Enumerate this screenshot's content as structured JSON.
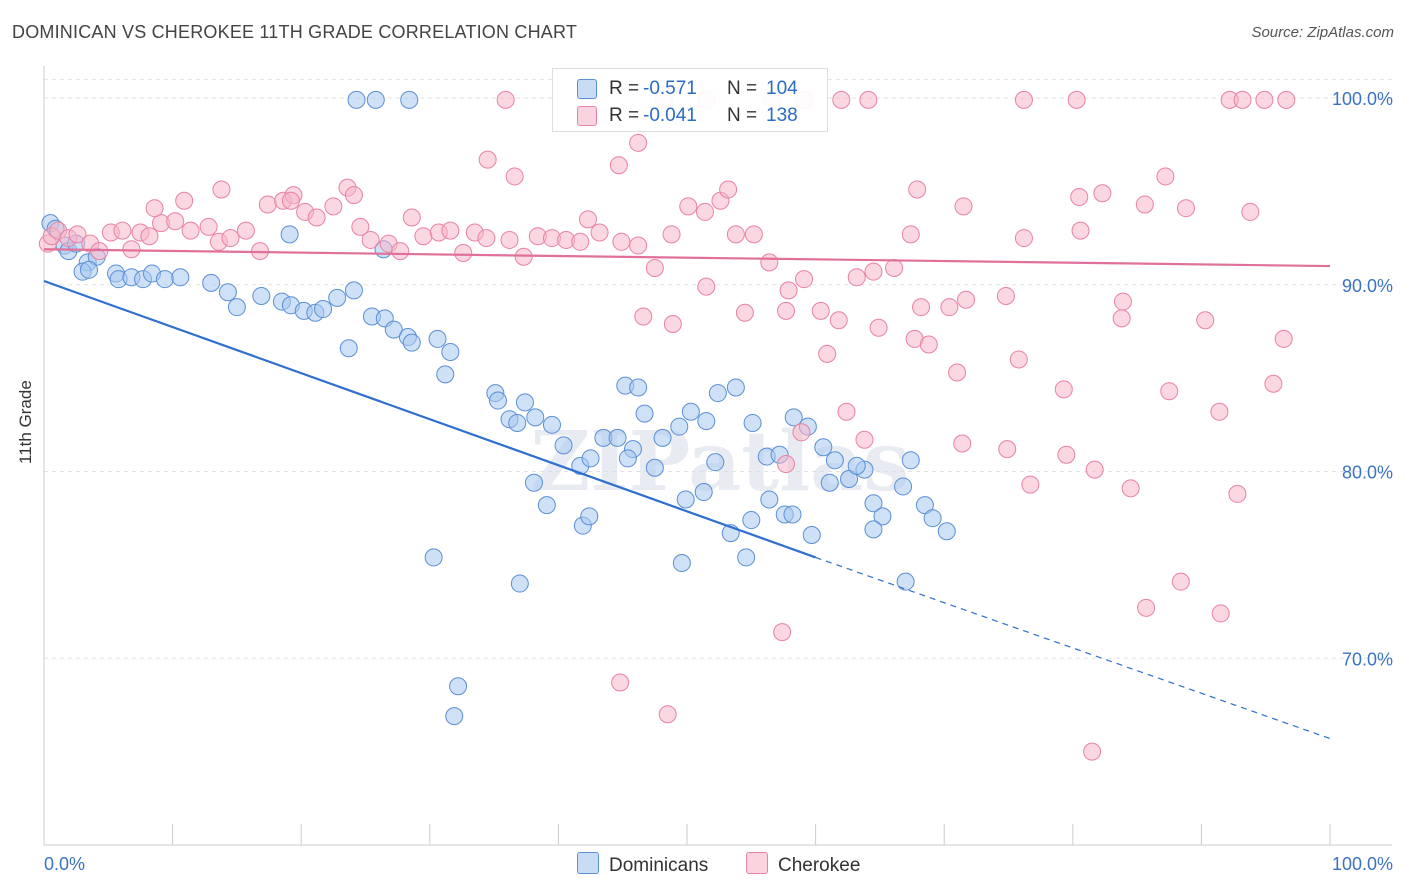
{
  "header": {
    "title": "DOMINICAN VS CHEROKEE 11TH GRADE CORRELATION CHART",
    "source": "Source: ZipAtlas.com"
  },
  "legend": {
    "rows": [
      {
        "r_label": "R =",
        "r_value": "-0.571",
        "n_label": "N =",
        "n_value": "104",
        "color": "#a8c8f0"
      },
      {
        "r_label": "R =",
        "r_value": "-0.041",
        "n_label": "N =",
        "n_value": "138",
        "color": "#f7b6c9"
      }
    ]
  },
  "bottom_legend": {
    "dominicans": "Dominicans",
    "cherokee": "Cherokee"
  },
  "chart_data": {
    "type": "scatter",
    "title": "DOMINICAN VS CHEROKEE 11TH GRADE CORRELATION CHART",
    "xlabel": "",
    "ylabel": "11th Grade",
    "xlim": [
      0,
      100
    ],
    "ylim": [
      60,
      101.5
    ],
    "x_tick_labels": [
      "0.0%",
      "100.0%"
    ],
    "y_tick_labels": [
      "100.0%",
      "90.0%",
      "80.0%",
      "70.0%"
    ],
    "y_ticks": [
      100,
      90,
      80,
      70
    ],
    "grid": true,
    "watermark": "ZIPatlas",
    "series": [
      {
        "name": "Dominicans",
        "color": "#a8c8f0",
        "stroke": "#5b8fd6",
        "R": -0.571,
        "N": 104,
        "trend": {
          "x0": 0,
          "y0": 90.2,
          "x1": 60,
          "y1": 75.4,
          "dashed_to_x": 100,
          "dashed_to_y": 65.7,
          "color": "#2e6fd0"
        },
        "points": [
          [
            0.5,
            93.3
          ],
          [
            0.9,
            93
          ],
          [
            1.6,
            92.1
          ],
          [
            1.9,
            91.8
          ],
          [
            2.5,
            92.2
          ],
          [
            3.4,
            91.2
          ],
          [
            4.1,
            91.5
          ],
          [
            3,
            90.7
          ],
          [
            3.5,
            90.8
          ],
          [
            5.6,
            90.6
          ],
          [
            5.8,
            90.3
          ],
          [
            6.8,
            90.4
          ],
          [
            7.7,
            90.3
          ],
          [
            8.4,
            90.6
          ],
          [
            9.4,
            90.3
          ],
          [
            10.6,
            90.4
          ],
          [
            13,
            90.1
          ],
          [
            14.3,
            89.6
          ],
          [
            15,
            88.8
          ],
          [
            16.9,
            89.4
          ],
          [
            18.5,
            89.1
          ],
          [
            19.2,
            88.9
          ],
          [
            20.2,
            88.6
          ],
          [
            21.1,
            88.5
          ],
          [
            21.7,
            88.7
          ],
          [
            22.8,
            89.3
          ],
          [
            24.1,
            89.7
          ],
          [
            25.5,
            88.3
          ],
          [
            26.5,
            88.2
          ],
          [
            27.2,
            87.6
          ],
          [
            28.3,
            87.2
          ],
          [
            28.6,
            86.9
          ],
          [
            30.6,
            87.1
          ],
          [
            31.6,
            86.4
          ],
          [
            35.1,
            84.2
          ],
          [
            35.3,
            83.8
          ],
          [
            36.2,
            82.8
          ],
          [
            36.8,
            82.6
          ],
          [
            37.4,
            83.7
          ],
          [
            38.2,
            82.9
          ],
          [
            39.5,
            82.5
          ],
          [
            40.4,
            81.4
          ],
          [
            41.7,
            80.3
          ],
          [
            42.5,
            80.7
          ],
          [
            43.5,
            81.8
          ],
          [
            44.6,
            81.8
          ],
          [
            45.8,
            81.2
          ],
          [
            46.7,
            83.1
          ],
          [
            48.1,
            81.8
          ],
          [
            49.4,
            82.4
          ],
          [
            50.3,
            83.2
          ],
          [
            51.5,
            82.7
          ],
          [
            52.4,
            84.2
          ],
          [
            53.8,
            84.5
          ],
          [
            55.1,
            82.6
          ],
          [
            56.2,
            80.8
          ],
          [
            57.2,
            80.9
          ],
          [
            58.3,
            82.9
          ],
          [
            59.4,
            82.4
          ],
          [
            60.6,
            81.3
          ],
          [
            61.5,
            80.6
          ],
          [
            62.6,
            79.6
          ],
          [
            63.8,
            80.1
          ],
          [
            64.5,
            78.3
          ],
          [
            65.2,
            77.6
          ],
          [
            66.8,
            79.2
          ],
          [
            67.4,
            80.6
          ],
          [
            68.5,
            78.2
          ],
          [
            69.1,
            77.5
          ],
          [
            70.2,
            76.8
          ],
          [
            24.3,
            99.9
          ],
          [
            25.8,
            99.9
          ],
          [
            28.4,
            99.9
          ],
          [
            19.1,
            92.7
          ],
          [
            26.4,
            91.9
          ],
          [
            23.7,
            86.6
          ],
          [
            31.2,
            85.2
          ],
          [
            37,
            74
          ],
          [
            30.3,
            75.4
          ],
          [
            45.2,
            84.6
          ],
          [
            46.2,
            84.5
          ],
          [
            38.1,
            79.4
          ],
          [
            39.1,
            78.2
          ],
          [
            41.9,
            77.1
          ],
          [
            42.4,
            77.6
          ],
          [
            45.4,
            80.7
          ],
          [
            47.5,
            80.2
          ],
          [
            49.9,
            78.5
          ],
          [
            51.3,
            78.9
          ],
          [
            52.2,
            80.5
          ],
          [
            53.4,
            76.7
          ],
          [
            55,
            77.4
          ],
          [
            56.4,
            78.5
          ],
          [
            57.6,
            77.7
          ],
          [
            58.2,
            77.7
          ],
          [
            59.7,
            76.6
          ],
          [
            61.1,
            79.4
          ],
          [
            63.2,
            80.3
          ],
          [
            64.5,
            76.9
          ],
          [
            67,
            74.1
          ],
          [
            32.2,
            68.5
          ],
          [
            31.9,
            66.9
          ],
          [
            49.6,
            75.1
          ],
          [
            54.6,
            75.4
          ]
        ]
      },
      {
        "name": "Cherokee",
        "color": "#f7b6c9",
        "stroke": "#e882a4",
        "R": -0.041,
        "N": 138,
        "trend": {
          "x0": 0,
          "y0": 91.9,
          "x1": 100,
          "y1": 91.0,
          "color": "#e0709a"
        },
        "points": [
          [
            0.3,
            92.2
          ],
          [
            0.6,
            92.6
          ],
          [
            1.1,
            92.9
          ],
          [
            1.9,
            92.5
          ],
          [
            2.6,
            92.7
          ],
          [
            3.6,
            92.2
          ],
          [
            4.3,
            91.8
          ],
          [
            5.2,
            92.8
          ],
          [
            6.1,
            92.9
          ],
          [
            6.8,
            91.9
          ],
          [
            7.5,
            92.8
          ],
          [
            8.2,
            92.6
          ],
          [
            9.1,
            93.3
          ],
          [
            10.2,
            93.4
          ],
          [
            11.4,
            92.9
          ],
          [
            12.8,
            93.1
          ],
          [
            13.6,
            92.3
          ],
          [
            14.5,
            92.5
          ],
          [
            15.7,
            92.9
          ],
          [
            16.8,
            91.8
          ],
          [
            17.4,
            94.3
          ],
          [
            18.6,
            94.5
          ],
          [
            19.4,
            94.8
          ],
          [
            20.3,
            93.9
          ],
          [
            21.2,
            93.6
          ],
          [
            22.5,
            94.2
          ],
          [
            23.6,
            95.2
          ],
          [
            24.6,
            93.1
          ],
          [
            25.4,
            92.4
          ],
          [
            26.8,
            92.2
          ],
          [
            27.7,
            91.8
          ],
          [
            28.6,
            93.6
          ],
          [
            29.5,
            92.6
          ],
          [
            30.7,
            92.8
          ],
          [
            31.6,
            92.9
          ],
          [
            32.6,
            91.7
          ],
          [
            33.5,
            92.8
          ],
          [
            34.4,
            92.5
          ],
          [
            36.2,
            92.4
          ],
          [
            37.3,
            91.5
          ],
          [
            38.4,
            92.6
          ],
          [
            39.5,
            92.5
          ],
          [
            40.6,
            92.4
          ],
          [
            41.7,
            92.3
          ],
          [
            42.3,
            93.5
          ],
          [
            43.2,
            92.8
          ],
          [
            44.9,
            92.3
          ],
          [
            46.2,
            92.1
          ],
          [
            47.5,
            90.9
          ],
          [
            48.8,
            92.7
          ],
          [
            50.1,
            94.2
          ],
          [
            51.4,
            93.9
          ],
          [
            52.6,
            94.5
          ],
          [
            53.8,
            92.7
          ],
          [
            55.2,
            92.7
          ],
          [
            56.4,
            91.2
          ],
          [
            57.9,
            89.7
          ],
          [
            59.1,
            90.3
          ],
          [
            60.4,
            88.6
          ],
          [
            61.8,
            88.1
          ],
          [
            63.2,
            90.4
          ],
          [
            64.5,
            90.7
          ],
          [
            66.1,
            90.9
          ],
          [
            67.4,
            92.7
          ],
          [
            68.2,
            88.8
          ],
          [
            70.4,
            88.8
          ],
          [
            71.7,
            89.2
          ],
          [
            74.8,
            89.4
          ],
          [
            76.2,
            92.5
          ],
          [
            80.6,
            92.9
          ],
          [
            83.9,
            89.1
          ],
          [
            90.3,
            88.1
          ],
          [
            93.8,
            93.9
          ],
          [
            96.4,
            87.1
          ],
          [
            35.9,
            99.9
          ],
          [
            36.6,
            95.8
          ],
          [
            48.2,
            99.9
          ],
          [
            51.5,
            99.9
          ],
          [
            56.6,
            99.9
          ],
          [
            59.1,
            99.9
          ],
          [
            62,
            99.9
          ],
          [
            64.1,
            99.9
          ],
          [
            76.2,
            99.9
          ],
          [
            80.3,
            99.9
          ],
          [
            92.2,
            99.9
          ],
          [
            93.2,
            99.9
          ],
          [
            94.9,
            99.9
          ],
          [
            96.6,
            99.9
          ],
          [
            34.5,
            96.7
          ],
          [
            44.7,
            96.4
          ],
          [
            46.2,
            97.6
          ],
          [
            53.2,
            95.1
          ],
          [
            67.9,
            95.1
          ],
          [
            71.5,
            94.2
          ],
          [
            80.5,
            94.7
          ],
          [
            82.3,
            94.9
          ],
          [
            85.6,
            94.3
          ],
          [
            88.8,
            94.1
          ],
          [
            87.2,
            95.8
          ],
          [
            13.8,
            95.1
          ],
          [
            8.6,
            94.1
          ],
          [
            10.9,
            94.5
          ],
          [
            19.2,
            94.5
          ],
          [
            24.1,
            94.8
          ],
          [
            46.6,
            88.3
          ],
          [
            48.9,
            87.9
          ],
          [
            51.5,
            89.9
          ],
          [
            54.5,
            88.5
          ],
          [
            57.7,
            88.6
          ],
          [
            60.9,
            86.3
          ],
          [
            64.9,
            87.7
          ],
          [
            67.7,
            87.1
          ],
          [
            68.8,
            86.8
          ],
          [
            71,
            85.3
          ],
          [
            75.8,
            86
          ],
          [
            79.3,
            84.4
          ],
          [
            83.8,
            88.2
          ],
          [
            87.5,
            84.3
          ],
          [
            91.4,
            83.2
          ],
          [
            95.6,
            84.7
          ],
          [
            62.4,
            83.2
          ],
          [
            57.7,
            80.4
          ],
          [
            58.9,
            82.1
          ],
          [
            63.8,
            81.7
          ],
          [
            71.4,
            81.5
          ],
          [
            74.9,
            81.2
          ],
          [
            79.5,
            80.9
          ],
          [
            81.7,
            80.1
          ],
          [
            76.7,
            79.3
          ],
          [
            85.7,
            72.7
          ],
          [
            84.5,
            79.1
          ],
          [
            88.4,
            74.1
          ],
          [
            91.5,
            72.4
          ],
          [
            92.8,
            78.8
          ],
          [
            81.5,
            65.0
          ],
          [
            57.4,
            71.4
          ],
          [
            44.8,
            68.7
          ],
          [
            48.5,
            67
          ]
        ]
      }
    ]
  }
}
